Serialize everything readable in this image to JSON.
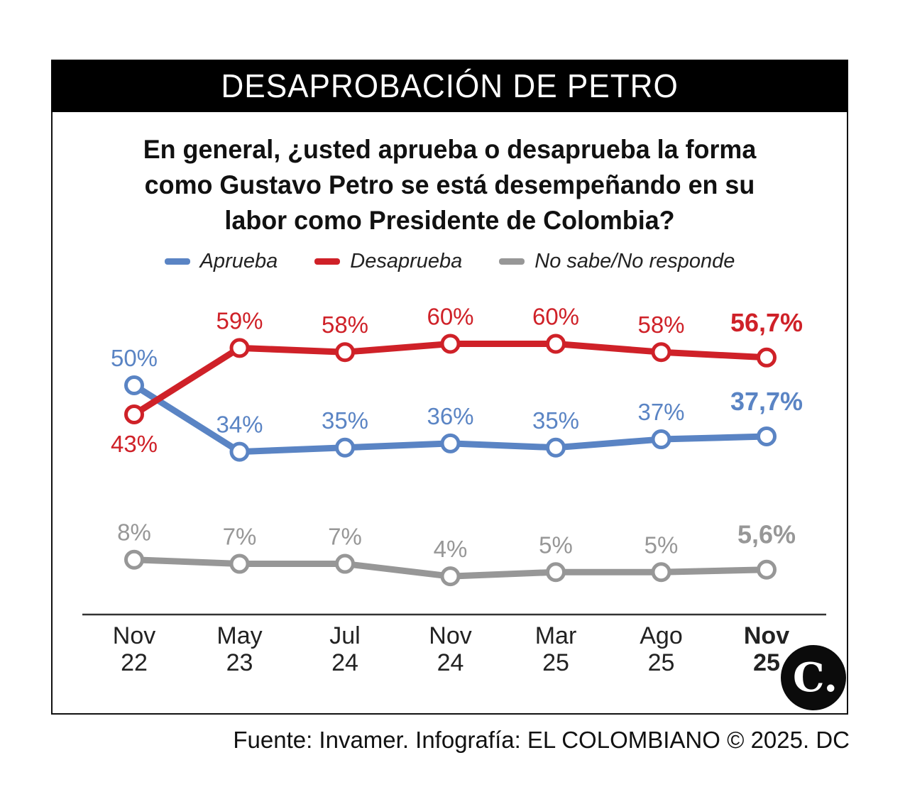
{
  "header": {
    "title": "DESAPROBACIÓN DE PETRO"
  },
  "question": {
    "lines": [
      "En general, ¿usted aprueba o desaprueba la forma",
      "como Gustavo Petro se está desempeñando en su",
      "labor como Presidente de Colombia?"
    ]
  },
  "legend": {
    "items": [
      {
        "label": "Aprueba",
        "color": "#5a84c4"
      },
      {
        "label": "Desaprueba",
        "color": "#cf2128"
      },
      {
        "label": "No sabe/No responde",
        "color": "#979797"
      }
    ]
  },
  "chart_data": {
    "type": "line",
    "title": "Desaprobación de Petro",
    "xlabel": "",
    "ylabel": "",
    "ylim": [
      0,
      100
    ],
    "grid": false,
    "value_axis": "hidden",
    "legend_position": "top",
    "categories": [
      {
        "month": "Nov",
        "year": "22"
      },
      {
        "month": "May",
        "year": "23"
      },
      {
        "month": "Jul",
        "year": "24"
      },
      {
        "month": "Nov",
        "year": "24"
      },
      {
        "month": "Mar",
        "year": "25"
      },
      {
        "month": "Ago",
        "year": "25"
      },
      {
        "month": "Nov",
        "year": "25"
      }
    ],
    "series": [
      {
        "name": "No sabe/No responde",
        "color": "#979797",
        "values": [
          8,
          7,
          7,
          4,
          5,
          5,
          5.6
        ],
        "labels": [
          "8%",
          "7%",
          "7%",
          "4%",
          "5%",
          "5%",
          "5,6%"
        ]
      },
      {
        "name": "Aprueba",
        "color": "#5a84c4",
        "values": [
          50,
          34,
          35,
          36,
          35,
          37,
          37.7
        ],
        "labels": [
          "50%",
          "34%",
          "35%",
          "36%",
          "35%",
          "37%",
          "37,7%"
        ]
      },
      {
        "name": "Desaprueba",
        "color": "#cf2128",
        "values": [
          43,
          59,
          58,
          60,
          60,
          58,
          56.7
        ],
        "labels": [
          "43%",
          "59%",
          "58%",
          "60%",
          "60%",
          "58%",
          "56,7%"
        ]
      }
    ],
    "last_point_emphasis": true
  },
  "footer": {
    "text": "Fuente: Invamer. Infografía: EL COLOMBIANO © 2025. DC"
  },
  "logo": {
    "text": "C."
  }
}
